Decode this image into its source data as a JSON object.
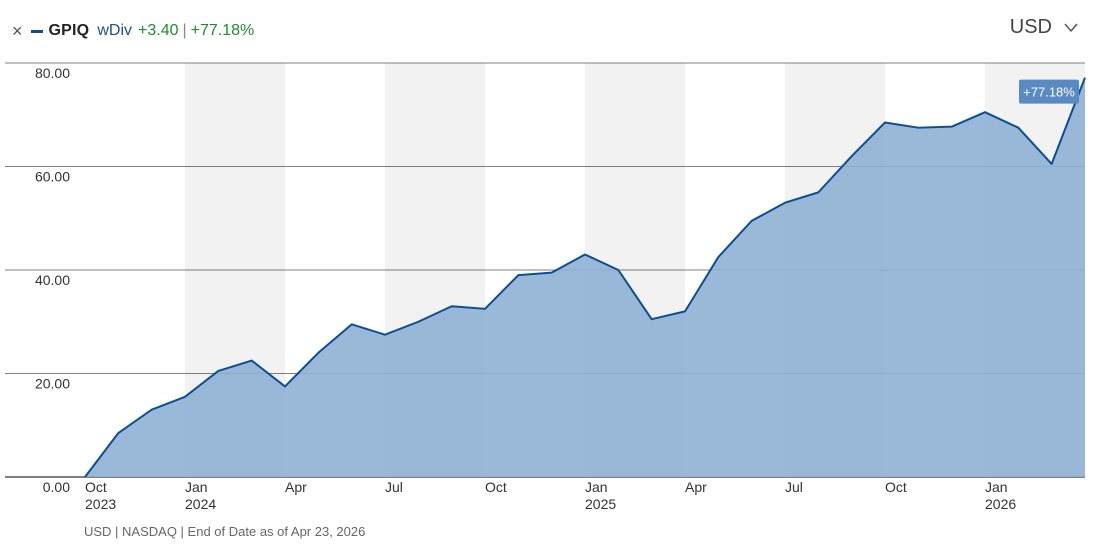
{
  "legend": {
    "close_glyph": "×",
    "ticker": "GPIQ",
    "series_label": "wDiv",
    "change_abs": "+3.40",
    "separator": "|",
    "change_pct": "+77.18%"
  },
  "currency": {
    "label": "USD"
  },
  "footer": {
    "text": "USD | NASDAQ | End of Date as of Apr 23, 2026"
  },
  "colors": {
    "line": "#0d4d94",
    "fill": "#8fb1d4",
    "band": "#f2f2f2",
    "callout": "#5b89c2",
    "positive": "#1e8a2e"
  },
  "chart_data": {
    "type": "area",
    "title": "",
    "xlabel": "",
    "ylabel": "",
    "series": [
      {
        "name": "GPIQ",
        "values": [
          0.0,
          8.5,
          13.0,
          15.5,
          20.5,
          22.5,
          17.5,
          24.0,
          29.5,
          27.5,
          30.0,
          33.0,
          32.5,
          39.0,
          39.5,
          43.0,
          40.0,
          30.5,
          32.0,
          42.5,
          49.5,
          53.0,
          55.0,
          62.0,
          68.5,
          67.5,
          67.7,
          70.5,
          67.5,
          60.5,
          77.18
        ]
      }
    ],
    "x_start_month": "2023-10",
    "x_end_label": "Apr 23, 2026",
    "ylim": [
      0,
      80
    ],
    "y_ticks": [
      {
        "value": 0,
        "label": "0.00"
      },
      {
        "value": 20,
        "label": "20.00"
      },
      {
        "value": 40,
        "label": "40.00"
      },
      {
        "value": 60,
        "label": "60.00"
      },
      {
        "value": 80,
        "label": "80.00"
      }
    ],
    "x_ticks": [
      {
        "month_index": 0,
        "label": "Oct",
        "year": "2023"
      },
      {
        "month_index": 3,
        "label": "Jan",
        "year": "2024"
      },
      {
        "month_index": 6,
        "label": "Apr",
        "year": ""
      },
      {
        "month_index": 9,
        "label": "Jul",
        "year": ""
      },
      {
        "month_index": 12,
        "label": "Oct",
        "year": ""
      },
      {
        "month_index": 15,
        "label": "Jan",
        "year": "2025"
      },
      {
        "month_index": 18,
        "label": "Apr",
        "year": ""
      },
      {
        "month_index": 21,
        "label": "Jul",
        "year": ""
      },
      {
        "month_index": 24,
        "label": "Oct",
        "year": ""
      },
      {
        "month_index": 27,
        "label": "Jan",
        "year": "2026"
      }
    ],
    "shaded_quarters": [
      [
        3,
        6
      ],
      [
        9,
        12
      ],
      [
        15,
        18
      ],
      [
        21,
        24
      ],
      [
        27,
        30
      ]
    ],
    "last_value_label": "+77.18%",
    "grid": true,
    "legend_position": "top-left"
  }
}
